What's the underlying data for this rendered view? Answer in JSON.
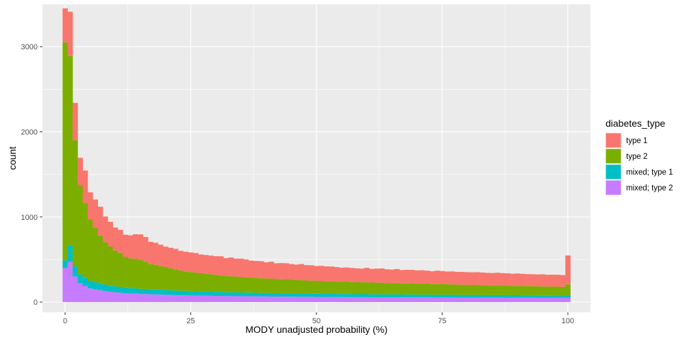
{
  "chart_data": {
    "type": "bar",
    "stacked": true,
    "xlabel": "MODY unadjusted probability (%)",
    "ylabel": "count",
    "xlim": [
      -4.5,
      104.5
    ],
    "ylim": [
      -120,
      3500
    ],
    "x_ticks": [
      0,
      25,
      50,
      75,
      100
    ],
    "y_ticks": [
      0,
      1000,
      2000,
      3000
    ],
    "grid": true,
    "legend": {
      "title": "diabetes_type",
      "position": "right"
    },
    "bin_width": 1,
    "x": [
      0,
      1,
      2,
      3,
      4,
      5,
      6,
      7,
      8,
      9,
      10,
      11,
      12,
      13,
      14,
      15,
      16,
      17,
      18,
      19,
      20,
      21,
      22,
      23,
      24,
      25,
      26,
      27,
      28,
      29,
      30,
      31,
      32,
      33,
      34,
      35,
      36,
      37,
      38,
      39,
      40,
      41,
      42,
      43,
      44,
      45,
      46,
      47,
      48,
      49,
      50,
      51,
      52,
      53,
      54,
      55,
      56,
      57,
      58,
      59,
      60,
      61,
      62,
      63,
      64,
      65,
      66,
      67,
      68,
      69,
      70,
      71,
      72,
      73,
      74,
      75,
      76,
      77,
      78,
      79,
      80,
      81,
      82,
      83,
      84,
      85,
      86,
      87,
      88,
      89,
      90,
      91,
      92,
      93,
      94,
      95,
      96,
      97,
      98,
      99,
      100
    ],
    "series": [
      {
        "name": "mixed; type 2",
        "color": "#C77CFF",
        "values": [
          400,
          470,
          300,
          220,
          190,
          160,
          150,
          140,
          130,
          120,
          115,
          110,
          105,
          100,
          100,
          95,
          95,
          90,
          90,
          88,
          86,
          84,
          82,
          80,
          80,
          78,
          77,
          76,
          75,
          74,
          73,
          72,
          71,
          70,
          70,
          69,
          68,
          68,
          67,
          66,
          66,
          65,
          65,
          64,
          64,
          63,
          63,
          62,
          62,
          62,
          61,
          61,
          60,
          60,
          60,
          59,
          59,
          58,
          58,
          58,
          58,
          57,
          57,
          57,
          56,
          56,
          56,
          56,
          55,
          55,
          55,
          55,
          55,
          54,
          54,
          54,
          54,
          54,
          53,
          53,
          53,
          53,
          53,
          52,
          52,
          52,
          52,
          52,
          52,
          51,
          51,
          51,
          51,
          51,
          50,
          50,
          50,
          50,
          50,
          50,
          50
        ]
      },
      {
        "name": "mixed; type 1",
        "color": "#00BFC4",
        "values": [
          90,
          200,
          120,
          105,
          95,
          90,
          85,
          80,
          75,
          72,
          70,
          68,
          66,
          64,
          62,
          60,
          59,
          58,
          57,
          56,
          55,
          54,
          53,
          52,
          51,
          50,
          49,
          48,
          48,
          47,
          46,
          46,
          45,
          45,
          44,
          44,
          43,
          43,
          42,
          42,
          41,
          41,
          40,
          40,
          40,
          39,
          39,
          39,
          38,
          38,
          38,
          37,
          37,
          37,
          36,
          36,
          36,
          36,
          35,
          35,
          35,
          35,
          34,
          34,
          34,
          34,
          34,
          33,
          33,
          33,
          33,
          33,
          32,
          32,
          32,
          32,
          32,
          32,
          31,
          31,
          31,
          31,
          31,
          31,
          30,
          30,
          30,
          30,
          30,
          30,
          30,
          29,
          29,
          29,
          29,
          29,
          29,
          29,
          29,
          28,
          28
        ]
      },
      {
        "name": "type 2",
        "color": "#7CAE00",
        "values": [
          2560,
          2220,
          1480,
          1050,
          880,
          720,
          640,
          560,
          500,
          460,
          420,
          400,
          360,
          350,
          345,
          340,
          320,
          300,
          290,
          280,
          270,
          260,
          250,
          240,
          230,
          225,
          220,
          215,
          210,
          205,
          200,
          195,
          190,
          188,
          186,
          182,
          180,
          176,
          174,
          172,
          170,
          168,
          166,
          164,
          162,
          160,
          158,
          156,
          154,
          152,
          150,
          148,
          147,
          146,
          145,
          144,
          143,
          142,
          141,
          140,
          139,
          138,
          137,
          136,
          135,
          134,
          133,
          132,
          131,
          130,
          129,
          128,
          127,
          126,
          125,
          124,
          123,
          122,
          121,
          120,
          119,
          118,
          117,
          116,
          115,
          114,
          113,
          112,
          111,
          110,
          110,
          109,
          108,
          107,
          106,
          105,
          104,
          103,
          102,
          101,
          130
        ]
      },
      {
        "name": "type 1",
        "color": "#F8766D",
        "values": [
          400,
          520,
          440,
          320,
          380,
          320,
          330,
          340,
          300,
          290,
          270,
          270,
          260,
          270,
          290,
          300,
          290,
          260,
          260,
          250,
          240,
          240,
          240,
          230,
          230,
          230,
          230,
          220,
          220,
          220,
          220,
          225,
          210,
          220,
          210,
          215,
          210,
          200,
          200,
          200,
          190,
          200,
          185,
          190,
          190,
          185,
          180,
          190,
          180,
          180,
          175,
          180,
          175,
          175,
          170,
          165,
          168,
          165,
          162,
          160,
          170,
          160,
          165,
          168,
          160,
          158,
          165,
          155,
          160,
          160,
          155,
          158,
          155,
          150,
          158,
          155,
          150,
          152,
          150,
          150,
          148,
          148,
          150,
          148,
          146,
          145,
          150,
          146,
          145,
          142,
          145,
          143,
          140,
          140,
          140,
          142,
          138,
          140,
          140,
          138,
          340
        ]
      }
    ]
  }
}
